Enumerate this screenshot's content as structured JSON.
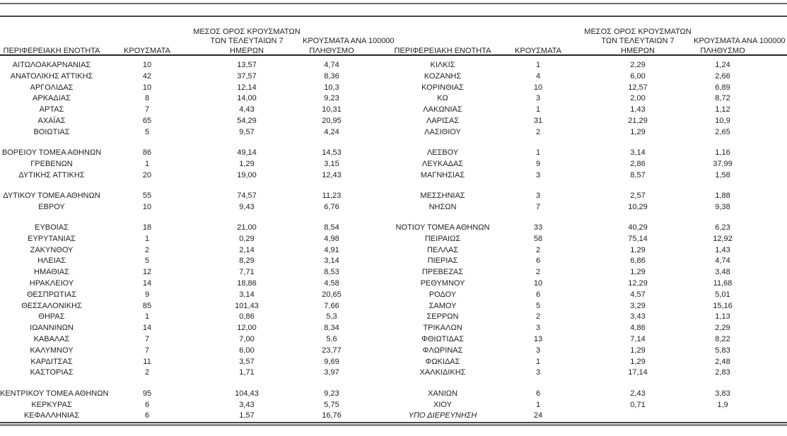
{
  "document": {
    "language": "el",
    "description_visible_content": "regional COVID case table, two side-by-side halves"
  },
  "colors": {
    "text": "#1f1f1f",
    "top_rule_1": "#6b6b6b",
    "top_rule_2": "#4a4a4a",
    "header_rule": "#262626",
    "bottom_rule_dark": "#474747",
    "bottom_rule_gray": "#8a8a8a",
    "background": "#ffffff"
  },
  "columns": {
    "region": "ΠΕΡΙΦΕΡΕΙΑΚΗ ΕΝΟΤΗΤΑ",
    "cases": "ΚΡΟΥΣΜΑΤΑ",
    "avg7_lines": [
      "ΜΕΣΟΣ ΟΡΟΣ ΚΡΟΥΣΜΑΤΩΝ",
      "ΤΩΝ ΤΕΛΕΥΤΑΙΩΝ 7",
      "ΗΜΕΡΩΝ"
    ],
    "per100k_lines": [
      "ΚΡΟΥΣΜΑΤΑ ΑΝΑ 100000",
      "ΠΛΗΘΥΣΜΟ"
    ]
  },
  "tables": {
    "left": {
      "rows": [
        [
          "ΑΙΤΩΛΟΑΚΑΡΝΑΝΙΑΣ",
          "10",
          "13,57",
          "4,74"
        ],
        [
          "ΑΝΑΤΟΛΙΚΗΣ ΑΤΤΙΚΗΣ",
          "42",
          "37,57",
          "8,36"
        ],
        [
          "ΑΡΓΟΛΙΔΑΣ",
          "10",
          "12,14",
          "10,3"
        ],
        [
          "ΑΡΚΑΔΙΑΣ",
          "8",
          "14,00",
          "9,23"
        ],
        [
          "ΑΡΤΑΣ",
          "7",
          "4,43",
          "10,31"
        ],
        [
          "ΑΧΑΪΑΣ",
          "65",
          "54,29",
          "20,95"
        ],
        [
          "ΒΟΙΩΤΙΑΣ",
          "5",
          "9,57",
          "4,24"
        ],
        null,
        [
          "ΒΟΡΕΙΟΥ ΤΟΜΕΑ ΑΘΗΝΩΝ",
          "86",
          "49,14",
          "14,53"
        ],
        [
          "ΓΡΕΒΕΝΩΝ",
          "1",
          "1,29",
          "3,15"
        ],
        [
          "ΔΥΤΙΚΗΣ ΑΤΤΙΚΗΣ",
          "20",
          "19,00",
          "12,43"
        ],
        null,
        [
          "ΔΥΤΙΚΟΥ ΤΟΜΕΑ ΑΘΗΝΩΝ",
          "55",
          "74,57",
          "11,23"
        ],
        [
          "ΕΒΡΟΥ",
          "10",
          "9,43",
          "6,76"
        ],
        null,
        [
          "ΕΥΒΟΙΑΣ",
          "18",
          "21,00",
          "8,54"
        ],
        [
          "ΕΥΡΥΤΑΝΙΑΣ",
          "1",
          "0,29",
          "4,98"
        ],
        [
          "ΖΑΚΥΝΘΟΥ",
          "2",
          "2,14",
          "4,91"
        ],
        [
          "ΗΛΕΙΑΣ",
          "5",
          "8,29",
          "3,14"
        ],
        [
          "ΗΜΑΘΙΑΣ",
          "12",
          "7,71",
          "8,53"
        ],
        [
          "ΗΡΑΚΛΕΙΟΥ",
          "14",
          "18,86",
          "4,58"
        ],
        [
          "ΘΕΣΠΡΩΤΙΑΣ",
          "9",
          "3,14",
          "20,65"
        ],
        [
          "ΘΕΣΣΑΛΟΝΙΚΗΣ",
          "85",
          "101,43",
          "7,66"
        ],
        [
          "ΘΗΡΑΣ",
          "1",
          "0,86",
          "5,3"
        ],
        [
          "ΙΩΑΝΝΙΝΩΝ",
          "14",
          "12,00",
          "8,34"
        ],
        [
          "ΚΑΒΑΛΑΣ",
          "7",
          "7,00",
          "5,6"
        ],
        [
          "ΚΑΛΥΜΝΟΥ",
          "7",
          "6,00",
          "23,77"
        ],
        [
          "ΚΑΡΔΙΤΣΑΣ",
          "11",
          "3,57",
          "9,69"
        ],
        [
          "ΚΑΣΤΟΡΙΑΣ",
          "2",
          "1,71",
          "3,97"
        ],
        null,
        [
          "ΚΕΝΤΡΙΚΟΥ ΤΟΜΕΑ ΑΘΗΝΩΝ",
          "95",
          "104,43",
          "9,23"
        ],
        [
          "ΚΕΡΚΥΡΑΣ",
          "6",
          "3,43",
          "5,75"
        ],
        [
          "ΚΕΦΑΛΛΗΝΙΑΣ",
          "6",
          "1,57",
          "16,76"
        ]
      ]
    },
    "right": {
      "rows": [
        [
          "ΚΙΛΚΙΣ",
          "1",
          "2,29",
          "1,24"
        ],
        [
          "ΚΟΖΑΝΗΣ",
          "4",
          "6,00",
          "2,66"
        ],
        [
          "ΚΟΡΙΝΘΙΑΣ",
          "10",
          "12,57",
          "6,89"
        ],
        [
          "ΚΩ",
          "3",
          "2,00",
          "8,72"
        ],
        [
          "ΛΑΚΩΝΙΑΣ",
          "1",
          "1,43",
          "1,12"
        ],
        [
          "ΛΑΡΙΣΑΣ",
          "31",
          "21,29",
          "10,9"
        ],
        [
          "ΛΑΣΙΘΙΟΥ",
          "2",
          "1,29",
          "2,65"
        ],
        null,
        [
          "ΛΕΣΒΟΥ",
          "1",
          "3,14",
          "1,16"
        ],
        [
          "ΛΕΥΚΑΔΑΣ",
          "9",
          "2,86",
          "37,99"
        ],
        [
          "ΜΑΓΝΗΣΙΑΣ",
          "3",
          "8,57",
          "1,58"
        ],
        null,
        [
          "ΜΕΣΣΗΝΙΑΣ",
          "3",
          "2,57",
          "1,88"
        ],
        [
          "ΝΗΣΩΝ",
          "7",
          "10,29",
          "9,38"
        ],
        null,
        [
          "ΝΟΤΙΟΥ ΤΟΜΕΑ ΑΘΗΝΩΝ",
          "33",
          "40,29",
          "6,23"
        ],
        [
          "ΠΕΙΡΑΙΩΣ",
          "58",
          "75,14",
          "12,92"
        ],
        [
          "ΠΕΛΛΑΣ",
          "2",
          "1,29",
          "1,43"
        ],
        [
          "ΠΙΕΡΙΑΣ",
          "6",
          "6,86",
          "4,74"
        ],
        [
          "ΠΡΕΒΕΖΑΣ",
          "2",
          "1,29",
          "3,48"
        ],
        [
          "ΡΕΘΥΜΝΟΥ",
          "10",
          "12,29",
          "11,68"
        ],
        [
          "ΡΟΔΟΥ",
          "6",
          "4,57",
          "5,01"
        ],
        [
          "ΣΑΜΟΥ",
          "5",
          "3,29",
          "15,16"
        ],
        [
          "ΣΕΡΡΩΝ",
          "2",
          "3,43",
          "1,13"
        ],
        [
          "ΤΡΙΚΑΛΩΝ",
          "3",
          "4,86",
          "2,29"
        ],
        [
          "ΦΘΙΩΤΙΔΑΣ",
          "13",
          "7,14",
          "8,22"
        ],
        [
          "ΦΛΩΡΙΝΑΣ",
          "3",
          "1,29",
          "5,83"
        ],
        [
          "ΦΩΚΙΔΑΣ",
          "1",
          "1,29",
          "2,48"
        ],
        [
          "ΧΑΛΚΙΔΙΚΗΣ",
          "3",
          "17,14",
          "2,83"
        ],
        null,
        [
          "ΧΑΝΙΩΝ",
          "6",
          "2,43",
          "3,83"
        ],
        [
          "ΧΙΟΥ",
          "1",
          "0,71",
          "1,9"
        ],
        [
          "ΥΠΟ ΔΙΕΡΕΥΝΗΣΗ",
          "24",
          "",
          "",
          "italic"
        ]
      ]
    }
  }
}
